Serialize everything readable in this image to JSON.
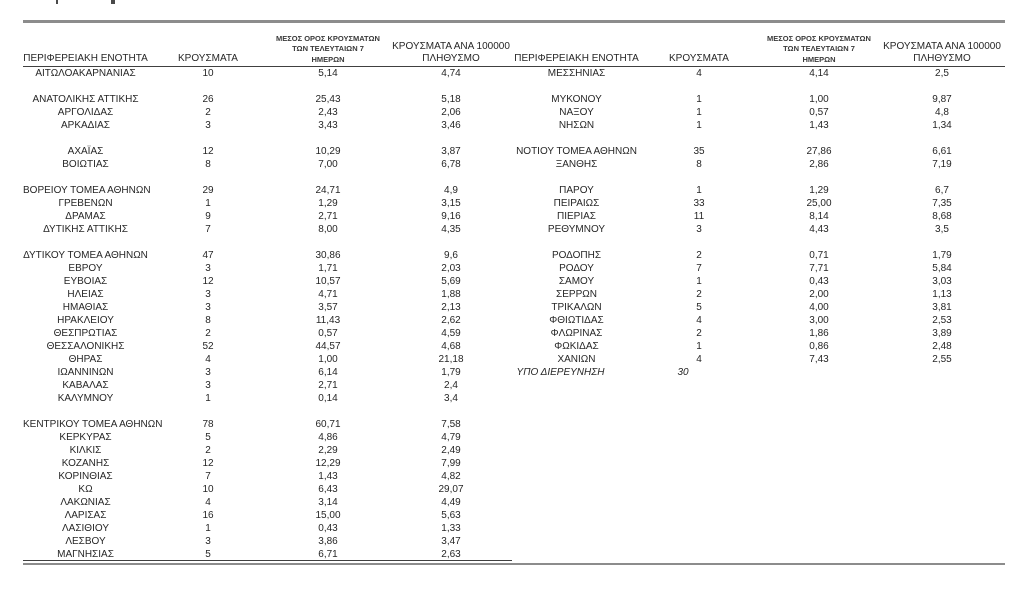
{
  "page": {
    "background": "#ffffff"
  },
  "colors": {
    "rule_thick": "#8c8c8c",
    "rule_thin": "#404040",
    "text": "#262626"
  },
  "table": {
    "header": {
      "region": "ΠΕΡΙΦΕΡΕΙΑΚΗ ΕΝΟΤΗΤΑ",
      "cases": "ΚΡΟΥΣΜΑΤΑ",
      "avg7_lines": [
        "ΜΕΣΟΣ ΟΡΟΣ ΚΡΟΥΣΜΑΤΩΝ",
        "ΤΩΝ ΤΕΛΕΥΤΑΙΩΝ 7",
        "ΗΜΕΡΩΝ"
      ],
      "per100k_lines": [
        "ΚΡΟΥΣΜΑΤΑ ΑΝΑ 100000",
        "ΠΛΗΘΥΣΜΟ"
      ]
    },
    "left_rows": [
      {
        "c": [
          "ΑΙΤΩΛΟΑΚΑΡΝΑΝΙΑΣ",
          "10",
          "5,14",
          "4,74"
        ]
      },
      null,
      {
        "c": [
          "ΑΝΑΤΟΛΙΚΗΣ ΑΤΤΙΚΗΣ",
          "26",
          "25,43",
          "5,18"
        ]
      },
      {
        "c": [
          "ΑΡΓΟΛΙΔΑΣ",
          "2",
          "2,43",
          "2,06"
        ]
      },
      {
        "c": [
          "ΑΡΚΑΔΙΑΣ",
          "3",
          "3,43",
          "3,46"
        ]
      },
      null,
      {
        "c": [
          "ΑΧΑΪΑΣ",
          "12",
          "10,29",
          "3,87"
        ]
      },
      {
        "c": [
          "ΒΟΙΩΤΙΑΣ",
          "8",
          "7,00",
          "6,78"
        ]
      },
      null,
      {
        "c": [
          "ΒΟΡΕΙΟΥ ΤΟΜΕΑ ΑΘΗΝΩΝ",
          "29",
          "24,71",
          "4,9"
        ]
      },
      {
        "c": [
          "ΓΡΕΒΕΝΩΝ",
          "1",
          "1,29",
          "3,15"
        ]
      },
      {
        "c": [
          "ΔΡΑΜΑΣ",
          "9",
          "2,71",
          "9,16"
        ]
      },
      {
        "c": [
          "ΔΥΤΙΚΗΣ ΑΤΤΙΚΗΣ",
          "7",
          "8,00",
          "4,35"
        ]
      },
      null,
      {
        "c": [
          "ΔΥΤΙΚΟΥ ΤΟΜΕΑ ΑΘΗΝΩΝ",
          "47",
          "30,86",
          "9,6"
        ]
      },
      {
        "c": [
          "ΕΒΡΟΥ",
          "3",
          "1,71",
          "2,03"
        ]
      },
      {
        "c": [
          "ΕΥΒΟΙΑΣ",
          "12",
          "10,57",
          "5,69"
        ]
      },
      {
        "c": [
          "ΗΛΕΙΑΣ",
          "3",
          "4,71",
          "1,88"
        ]
      },
      {
        "c": [
          "ΗΜΑΘΙΑΣ",
          "3",
          "3,57",
          "2,13"
        ]
      },
      {
        "c": [
          "ΗΡΑΚΛΕΙΟΥ",
          "8",
          "11,43",
          "2,62"
        ]
      },
      {
        "c": [
          "ΘΕΣΠΡΩΤΙΑΣ",
          "2",
          "0,57",
          "4,59"
        ]
      },
      {
        "c": [
          "ΘΕΣΣΑΛΟΝΙΚΗΣ",
          "52",
          "44,57",
          "4,68"
        ]
      },
      {
        "c": [
          "ΘΗΡΑΣ",
          "4",
          "1,00",
          "21,18"
        ]
      },
      {
        "c": [
          "ΙΩΑΝΝΙΝΩΝ",
          "3",
          "6,14",
          "1,79"
        ]
      },
      {
        "c": [
          "ΚΑΒΑΛΑΣ",
          "3",
          "2,71",
          "2,4"
        ]
      },
      {
        "c": [
          "ΚΑΛΥΜΝΟΥ",
          "1",
          "0,14",
          "3,4"
        ]
      },
      null,
      {
        "c": [
          "ΚΕΝΤΡΙΚΟΥ ΤΟΜΕΑ ΑΘΗΝΩΝ",
          "78",
          "60,71",
          "7,58"
        ]
      },
      {
        "c": [
          "ΚΕΡΚΥΡΑΣ",
          "5",
          "4,86",
          "4,79"
        ]
      },
      {
        "c": [
          "ΚΙΛΚΙΣ",
          "2",
          "2,29",
          "2,49"
        ]
      },
      {
        "c": [
          "ΚΟΖΑΝΗΣ",
          "12",
          "12,29",
          "7,99"
        ]
      },
      {
        "c": [
          "ΚΟΡΙΝΘΙΑΣ",
          "7",
          "1,43",
          "4,82"
        ]
      },
      {
        "c": [
          "ΚΩ",
          "10",
          "6,43",
          "29,07"
        ]
      },
      {
        "c": [
          "ΛΑΚΩΝΙΑΣ",
          "4",
          "3,14",
          "4,49"
        ]
      },
      {
        "c": [
          "ΛΑΡΙΣΑΣ",
          "16",
          "15,00",
          "5,63"
        ]
      },
      {
        "c": [
          "ΛΑΣΙΘΙΟΥ",
          "1",
          "0,43",
          "1,33"
        ]
      },
      {
        "c": [
          "ΛΕΣΒΟΥ",
          "3",
          "3,86",
          "3,47"
        ]
      },
      {
        "c": [
          "ΜΑΓΝΗΣΙΑΣ",
          "5",
          "6,71",
          "2,63"
        ]
      }
    ],
    "right_rows": [
      {
        "c": [
          "ΜΕΣΣΗΝΙΑΣ",
          "4",
          "4,14",
          "2,5"
        ]
      },
      null,
      {
        "c": [
          "ΜΥΚΟΝΟΥ",
          "1",
          "1,00",
          "9,87"
        ]
      },
      {
        "c": [
          "ΝΑΞΟΥ",
          "1",
          "0,57",
          "4,8"
        ]
      },
      {
        "c": [
          "ΝΗΣΩΝ",
          "1",
          "1,43",
          "1,34"
        ]
      },
      null,
      {
        "c": [
          "ΝΟΤΙΟΥ ΤΟΜΕΑ ΑΘΗΝΩΝ",
          "35",
          "27,86",
          "6,61"
        ]
      },
      {
        "c": [
          "ΞΑΝΘΗΣ",
          "8",
          "2,86",
          "7,19"
        ]
      },
      null,
      {
        "c": [
          "ΠΑΡΟΥ",
          "1",
          "1,29",
          "6,7"
        ]
      },
      {
        "c": [
          "ΠΕΙΡΑΙΩΣ",
          "33",
          "25,00",
          "7,35"
        ]
      },
      {
        "c": [
          "ΠΙΕΡΙΑΣ",
          "11",
          "8,14",
          "8,68"
        ]
      },
      {
        "c": [
          "ΡΕΘΥΜΝΟΥ",
          "3",
          "4,43",
          "3,5"
        ]
      },
      null,
      {
        "c": [
          "ΡΟΔΟΠΗΣ",
          "2",
          "0,71",
          "1,79"
        ]
      },
      {
        "c": [
          "ΡΟΔΟΥ",
          "7",
          "7,71",
          "5,84"
        ]
      },
      {
        "c": [
          "ΣΑΜΟΥ",
          "1",
          "0,43",
          "3,03"
        ]
      },
      {
        "c": [
          "ΣΕΡΡΩΝ",
          "2",
          "2,00",
          "1,13"
        ]
      },
      {
        "c": [
          "ΤΡΙΚΑΛΩΝ",
          "5",
          "4,00",
          "3,81"
        ]
      },
      {
        "c": [
          "ΦΘΙΩΤΙΔΑΣ",
          "4",
          "3,00",
          "2,53"
        ]
      },
      {
        "c": [
          "ΦΛΩΡΙΝΑΣ",
          "2",
          "1,86",
          "3,89"
        ]
      },
      {
        "c": [
          "ΦΩΚΙΔΑΣ",
          "1",
          "0,86",
          "2,48"
        ]
      },
      {
        "c": [
          "ΧΑΝΙΩΝ",
          "4",
          "7,43",
          "2,55"
        ]
      },
      {
        "c": [
          "ΥΠΟ ΔΙΕΡΕΥΝΗΣΗ",
          "30",
          "",
          ""
        ],
        "italic": true
      }
    ]
  }
}
